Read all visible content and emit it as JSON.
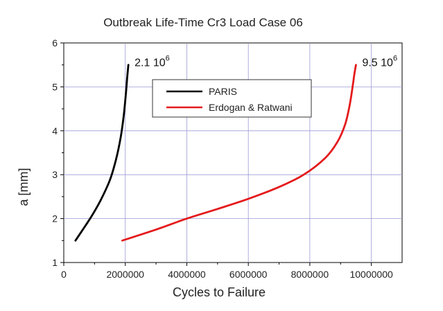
{
  "chart_data": {
    "type": "line",
    "title": "Outbreak Life-Time   Cr3  Load Case 06",
    "xlabel": "Cycles to Failure",
    "ylabel": "a  [mm]",
    "xlim": [
      0,
      11000000
    ],
    "ylim": [
      1,
      6
    ],
    "xticks": [
      0,
      2000000,
      4000000,
      6000000,
      8000000,
      10000000
    ],
    "xtick_labels": [
      "0",
      "2000000",
      "4000000",
      "6000000",
      "8000000",
      "10000000"
    ],
    "yticks": [
      1,
      2,
      3,
      4,
      5,
      6
    ],
    "ytick_labels": [
      "1",
      "2",
      "3",
      "4",
      "5",
      "6"
    ],
    "grid": true,
    "legend_position": "top-center",
    "series": [
      {
        "name": "PARIS",
        "color": "#000000",
        "points": [
          [
            380000,
            1.5
          ],
          [
            600000,
            1.73
          ],
          [
            900000,
            2.05
          ],
          [
            1200000,
            2.42
          ],
          [
            1500000,
            2.88
          ],
          [
            1700000,
            3.35
          ],
          [
            1850000,
            3.85
          ],
          [
            1950000,
            4.35
          ],
          [
            2020000,
            4.85
          ],
          [
            2060000,
            5.2
          ],
          [
            2100000,
            5.5
          ]
        ]
      },
      {
        "name": "Erdogan & Ratwani",
        "color": "#e41a1c",
        "points": [
          [
            1900000,
            1.5
          ],
          [
            3000000,
            1.75
          ],
          [
            4000000,
            2.0
          ],
          [
            5000000,
            2.22
          ],
          [
            6000000,
            2.45
          ],
          [
            7000000,
            2.72
          ],
          [
            7800000,
            3.0
          ],
          [
            8500000,
            3.38
          ],
          [
            8900000,
            3.75
          ],
          [
            9150000,
            4.15
          ],
          [
            9300000,
            4.6
          ],
          [
            9400000,
            5.05
          ],
          [
            9450000,
            5.3
          ],
          [
            9500000,
            5.5
          ]
        ]
      }
    ],
    "annotations": [
      {
        "base": "2.1 10",
        "sup": "6",
        "x": 2100000,
        "y": 5.5
      },
      {
        "base": "9.5 10",
        "sup": "6",
        "x": 9500000,
        "y": 5.5
      }
    ]
  }
}
